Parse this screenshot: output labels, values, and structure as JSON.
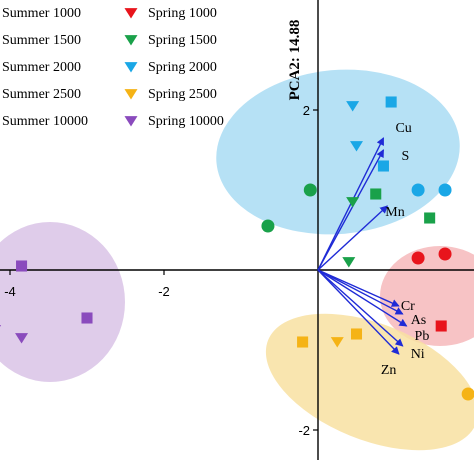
{
  "chart_data": {
    "type": "scatter",
    "title": "",
    "xlabel": "",
    "ylabel": "PCA2: 14.88",
    "xlim": [
      -4.3,
      2.7
    ],
    "ylim": [
      -2.3,
      3.2
    ],
    "x_ticks": [
      {
        "value": -4,
        "label": "-4"
      },
      {
        "value": -2,
        "label": "-2"
      }
    ],
    "y_ticks": [
      {
        "value": 2,
        "label": "2"
      },
      {
        "value": -2,
        "label": "-2"
      }
    ],
    "grid": false,
    "legend_position": "top-left",
    "series": [
      {
        "name": "Summer 1000",
        "marker": "circle",
        "color": "#e8141c",
        "points": [
          [
            1.3,
            0.15
          ],
          [
            1.65,
            0.2
          ]
        ]
      },
      {
        "name": "Summer 1500",
        "marker": "circle",
        "color": "#1aa14a",
        "points": [
          [
            -0.1,
            1.0
          ],
          [
            -0.65,
            0.55
          ]
        ]
      },
      {
        "name": "Summer 2000",
        "marker": "circle",
        "color": "#1aa7e6",
        "points": [
          [
            1.3,
            1.0
          ],
          [
            1.65,
            1.0
          ]
        ]
      },
      {
        "name": "Summer 2500",
        "marker": "circle",
        "color": "#f5b316",
        "points": [
          [
            1.95,
            -1.55
          ]
        ]
      },
      {
        "name": "Summer 10000",
        "marker": "square",
        "color": "#8a4bbd",
        "points": [
          [
            -3.85,
            0.05
          ],
          [
            -3.0,
            -0.6
          ]
        ]
      },
      {
        "name": "Spring 1000",
        "marker": "triangle-down",
        "color": "#e8141c",
        "points": []
      },
      {
        "name": "Spring 1500",
        "marker": "triangle-down",
        "color": "#1aa14a",
        "points": [
          [
            0.45,
            0.85
          ],
          [
            0.4,
            0.1
          ]
        ]
      },
      {
        "name": "Spring 2000",
        "marker": "triangle-down",
        "color": "#1aa7e6",
        "points": [
          [
            0.45,
            2.05
          ],
          [
            0.5,
            1.55
          ]
        ]
      },
      {
        "name": "Spring 2500",
        "marker": "triangle-down",
        "color": "#f5b316",
        "points": [
          [
            0.25,
            -0.9
          ]
        ]
      },
      {
        "name": "Spring 10000",
        "marker": "triangle-down",
        "color": "#8a4bbd",
        "points": [
          [
            -4.2,
            -0.75
          ],
          [
            -3.85,
            -0.85
          ]
        ]
      },
      {
        "name": "",
        "marker": "square",
        "color": "#1aa7e6",
        "points": [
          [
            0.95,
            2.1
          ],
          [
            0.85,
            1.3
          ]
        ]
      },
      {
        "name": "",
        "marker": "square",
        "color": "#1aa14a",
        "points": [
          [
            0.75,
            0.95
          ],
          [
            1.45,
            0.65
          ]
        ]
      },
      {
        "name": "",
        "marker": "square",
        "color": "#e8141c",
        "points": [
          [
            1.6,
            -0.7
          ]
        ]
      },
      {
        "name": "",
        "marker": "square",
        "color": "#f5b316",
        "points": [
          [
            -0.2,
            -0.9
          ],
          [
            0.5,
            -0.8
          ]
        ]
      }
    ],
    "loading_vectors": [
      {
        "name": "Cu",
        "x": 0.85,
        "y": 1.65,
        "label": "Cu"
      },
      {
        "name": "S",
        "x": 0.85,
        "y": 1.5,
        "label": "S"
      },
      {
        "name": "Mn",
        "x": 0.9,
        "y": 0.8,
        "label": "Mn"
      },
      {
        "name": "Cr",
        "x": 1.05,
        "y": -0.45,
        "label": "Cr"
      },
      {
        "name": "As",
        "x": 1.1,
        "y": -0.55,
        "label": "As"
      },
      {
        "name": "Pb",
        "x": 1.15,
        "y": -0.7,
        "label": "Pb"
      },
      {
        "name": "Ni",
        "x": 1.1,
        "y": -0.95,
        "label": "Ni"
      },
      {
        "name": "Zn",
        "x": 1.05,
        "y": -1.05,
        "label": "Zn"
      }
    ],
    "vector_color": "#1f2bd6",
    "ellipse_colors": {
      "blue": "#a9dcf3",
      "red": "#f6b9bb",
      "purple": "#d9c3e6",
      "yellow": "#f8e1a1"
    }
  }
}
